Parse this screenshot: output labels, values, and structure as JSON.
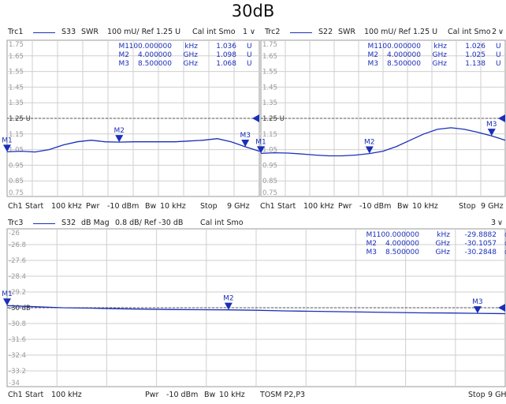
{
  "title": "30dB",
  "colors": {
    "trace": "#1a2fb8",
    "grid": "#cfcfcf",
    "ref_line": "#555555",
    "background": "#ffffff"
  },
  "panels": [
    {
      "header": {
        "trc": "Trc1",
        "param": "S33",
        "format": "SWR",
        "scale": "100 mU/ Ref 1.25 U",
        "cal": "Cal int Smo",
        "chan": "1"
      },
      "footer": {
        "ch": "Ch1",
        "start_label": "Start",
        "start": "100 kHz",
        "pwr_label": "Pwr",
        "pwr": "-10 dBm",
        "bw_label": "Bw",
        "bw": "10 kHz",
        "extra": "",
        "stop_label": "Stop",
        "stop": "9 GHz"
      },
      "markers": [
        {
          "name": "M1",
          "x": "100.000000",
          "unit": "kHz",
          "value": "1.036",
          "vunit": "U"
        },
        {
          "name": "M2",
          "x": "4.000000",
          "unit": "GHz",
          "value": "1.098",
          "vunit": "U"
        },
        {
          "name": "M3",
          "x": "8.500000",
          "unit": "GHz",
          "value": "1.068",
          "vunit": "U"
        }
      ]
    },
    {
      "header": {
        "trc": "Trc2",
        "param": "S22",
        "format": "SWR",
        "scale": "100 mU/ Ref 1.25 U",
        "cal": "Cal int Smo",
        "chan": "2"
      },
      "footer": {
        "ch": "Ch1",
        "start_label": "Start",
        "start": "100 kHz",
        "pwr_label": "Pwr",
        "pwr": "-10 dBm",
        "bw_label": "Bw",
        "bw": "10 kHz",
        "extra": "",
        "stop_label": "Stop",
        "stop": "9 GHz"
      },
      "markers": [
        {
          "name": "M1",
          "x": "100.000000",
          "unit": "kHz",
          "value": "1.026",
          "vunit": "U"
        },
        {
          "name": "M2",
          "x": "4.000000",
          "unit": "GHz",
          "value": "1.025",
          "vunit": "U"
        },
        {
          "name": "M3",
          "x": "8.500000",
          "unit": "GHz",
          "value": "1.138",
          "vunit": "U"
        }
      ]
    },
    {
      "header": {
        "trc": "Trc3",
        "param": "S32",
        "format": "dB Mag",
        "scale": "0.8 dB/ Ref -30 dB",
        "cal": "Cal int Smo",
        "chan": "3"
      },
      "footer": {
        "ch": "Ch1",
        "start_label": "Start",
        "start": "100 kHz",
        "pwr_label": "Pwr",
        "pwr": "-10 dBm",
        "bw_label": "Bw",
        "bw": "10 kHz",
        "extra": "TOSM P2,P3",
        "stop_label": "Stop",
        "stop": "9 GHz"
      },
      "markers": [
        {
          "name": "M1",
          "x": "100.000000",
          "unit": "kHz",
          "value": "-29.8882",
          "vunit": "dB"
        },
        {
          "name": "M2",
          "x": "4.000000",
          "unit": "GHz",
          "value": "-30.1057",
          "vunit": "dB"
        },
        {
          "name": "M3",
          "x": "8.500000",
          "unit": "GHz",
          "value": "-30.2848",
          "vunit": "dB"
        }
      ]
    }
  ],
  "chart_data": [
    {
      "type": "line",
      "x_unit": "GHz",
      "xlim": [
        0.0001,
        9
      ],
      "ylim": [
        0.75,
        1.75
      ],
      "yticks": [
        "1.75",
        "1.65",
        "1.55",
        "1.45",
        "1.35",
        "1.25 U",
        "1.15",
        "1.05",
        "0.95",
        "0.85",
        "0.75"
      ],
      "ref": 1.25,
      "grid": true,
      "series": [
        {
          "x": [
            0.0001,
            0.5,
            1.0,
            1.5,
            2.0,
            2.5,
            3.0,
            3.5,
            4.0,
            4.5,
            5.0,
            5.5,
            6.0,
            6.5,
            7.0,
            7.5,
            8.0,
            8.5,
            9.0
          ],
          "values": [
            1.036,
            1.04,
            1.035,
            1.05,
            1.08,
            1.1,
            1.11,
            1.1,
            1.098,
            1.1,
            1.1,
            1.1,
            1.1,
            1.105,
            1.11,
            1.12,
            1.1,
            1.068,
            1.04
          ]
        }
      ],
      "markers": [
        {
          "label": "M1",
          "x": 0.0001,
          "y": 1.036
        },
        {
          "label": "M2",
          "x": 4.0,
          "y": 1.098
        },
        {
          "label": "M3",
          "x": 8.5,
          "y": 1.068
        }
      ]
    },
    {
      "type": "line",
      "x_unit": "GHz",
      "xlim": [
        0.0001,
        9
      ],
      "ylim": [
        0.75,
        1.75
      ],
      "yticks": [
        "1.75",
        "1.65",
        "1.55",
        "1.45",
        "1.35",
        "1.25 U",
        "1.15",
        "1.05",
        "0.95",
        "0.85",
        "0.75"
      ],
      "ref": 1.25,
      "grid": true,
      "series": [
        {
          "x": [
            0.0001,
            0.5,
            1.0,
            1.5,
            2.0,
            2.5,
            3.0,
            3.5,
            4.0,
            4.5,
            5.0,
            5.5,
            6.0,
            6.5,
            7.0,
            7.5,
            8.0,
            8.5,
            9.0
          ],
          "values": [
            1.026,
            1.03,
            1.028,
            1.022,
            1.015,
            1.01,
            1.01,
            1.015,
            1.025,
            1.04,
            1.07,
            1.11,
            1.15,
            1.18,
            1.19,
            1.18,
            1.16,
            1.138,
            1.11
          ]
        }
      ],
      "markers": [
        {
          "label": "M1",
          "x": 0.0001,
          "y": 1.026
        },
        {
          "label": "M2",
          "x": 4.0,
          "y": 1.025
        },
        {
          "label": "M3",
          "x": 8.5,
          "y": 1.138
        }
      ]
    },
    {
      "type": "line",
      "x_unit": "GHz",
      "xlim": [
        0.0001,
        9
      ],
      "ylim": [
        -34,
        -26
      ],
      "yticks": [
        "-26",
        "-26.8",
        "-27.6",
        "-28.4",
        "-29.2",
        "-30 dB",
        "-30.8",
        "-31.6",
        "-32.4",
        "-33.2",
        "-34"
      ],
      "ref": -30,
      "grid": true,
      "series": [
        {
          "x": [
            0.0001,
            0.5,
            1.0,
            1.5,
            2.0,
            2.5,
            3.0,
            3.5,
            4.0,
            4.5,
            5.0,
            5.5,
            6.0,
            6.5,
            7.0,
            7.5,
            8.0,
            8.5,
            9.0
          ],
          "values": [
            -29.89,
            -29.95,
            -30.0,
            -30.02,
            -30.05,
            -30.07,
            -30.09,
            -30.1,
            -30.106,
            -30.13,
            -30.16,
            -30.18,
            -30.2,
            -30.22,
            -30.24,
            -30.26,
            -30.27,
            -30.285,
            -30.3
          ]
        }
      ],
      "markers": [
        {
          "label": "M1",
          "x": 0.0001,
          "y": -29.888
        },
        {
          "label": "M2",
          "x": 4.0,
          "y": -30.106
        },
        {
          "label": "M3",
          "x": 8.5,
          "y": -30.285
        }
      ]
    }
  ]
}
